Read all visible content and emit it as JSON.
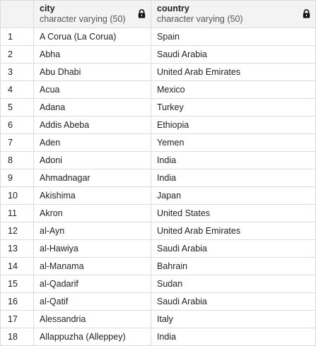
{
  "columns": [
    {
      "name": "city",
      "type": "character varying (50)",
      "icon": "lock-icon"
    },
    {
      "name": "country",
      "type": "character varying (50)",
      "icon": "lock-icon"
    }
  ],
  "rows": [
    {
      "n": "1",
      "city": "A Corua (La Corua)",
      "country": "Spain"
    },
    {
      "n": "2",
      "city": "Abha",
      "country": "Saudi Arabia"
    },
    {
      "n": "3",
      "city": "Abu Dhabi",
      "country": "United Arab Emirates"
    },
    {
      "n": "4",
      "city": "Acua",
      "country": "Mexico"
    },
    {
      "n": "5",
      "city": "Adana",
      "country": "Turkey"
    },
    {
      "n": "6",
      "city": "Addis Abeba",
      "country": "Ethiopia"
    },
    {
      "n": "7",
      "city": "Aden",
      "country": "Yemen"
    },
    {
      "n": "8",
      "city": "Adoni",
      "country": "India"
    },
    {
      "n": "9",
      "city": "Ahmadnagar",
      "country": "India"
    },
    {
      "n": "10",
      "city": "Akishima",
      "country": "Japan"
    },
    {
      "n": "11",
      "city": "Akron",
      "country": "United States"
    },
    {
      "n": "12",
      "city": "al-Ayn",
      "country": "United Arab Emirates"
    },
    {
      "n": "13",
      "city": "al-Hawiya",
      "country": "Saudi Arabia"
    },
    {
      "n": "14",
      "city": "al-Manama",
      "country": "Bahrain"
    },
    {
      "n": "15",
      "city": "al-Qadarif",
      "country": "Sudan"
    },
    {
      "n": "16",
      "city": "al-Qatif",
      "country": "Saudi Arabia"
    },
    {
      "n": "17",
      "city": "Alessandria",
      "country": "Italy"
    },
    {
      "n": "18",
      "city": "Allappuzha (Alleppey)",
      "country": "India"
    }
  ]
}
